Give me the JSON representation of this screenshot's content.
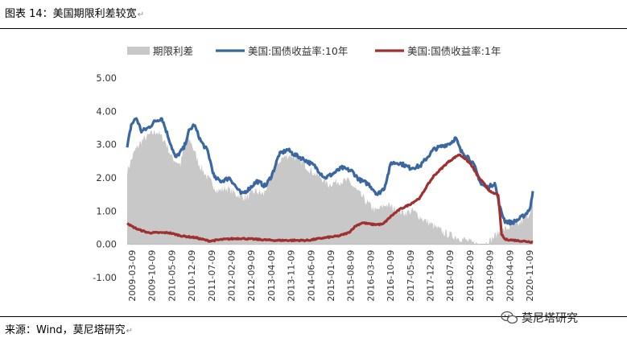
{
  "header": {
    "title": "图表 14：美国期限利差较宽",
    "mark": "↵"
  },
  "footer": {
    "source": "来源：Wind，莫尼塔研究",
    "mark": "↵"
  },
  "watermark": {
    "text": "莫尼塔研究",
    "icon": "wechat-icon"
  },
  "chart_data": {
    "type": "area",
    "title": "",
    "xlabel": "",
    "ylabel": "",
    "ylim": [
      -1.0,
      5.0
    ],
    "yticks": [
      "5.00",
      "4.00",
      "3.00",
      "2.00",
      "1.00",
      "0.00",
      "-1.00"
    ],
    "ytick_values": [
      5,
      4,
      3,
      2,
      1,
      0,
      -1
    ],
    "xticks": [
      "2009-03-09",
      "2009-10-09",
      "2010-05-09",
      "2010-12-09",
      "2011-07-09",
      "2012-02-09",
      "2012-09-09",
      "2013-04-09",
      "2013-11-09",
      "2014-06-09",
      "2015-01-09",
      "2015-08-09",
      "2016-03-09",
      "2016-10-09",
      "2017-05-09",
      "2017-12-09",
      "2018-07-09",
      "2019-02-09",
      "2019-09-09",
      "2020-04-09",
      "2020-11-09"
    ],
    "x_start": 2009.18,
    "x_end": 2021.12,
    "legend": {
      "position": "top"
    },
    "colors": {
      "spread": "#c8c8c8",
      "y10": "#3a67a2",
      "y1": "#a02f2f",
      "axis": "#aaaaaa"
    },
    "series": [
      {
        "name": "期限利差",
        "kind": "area",
        "x": [
          2009.18,
          2009.4,
          2009.6,
          2009.85,
          2010.05,
          2010.3,
          2010.5,
          2010.75,
          2010.9,
          2011.05,
          2011.3,
          2011.55,
          2011.85,
          2012.1,
          2012.4,
          2012.7,
          2012.95,
          2013.2,
          2013.5,
          2013.75,
          2014.0,
          2014.3,
          2014.6,
          2014.9,
          2015.1,
          2015.4,
          2015.7,
          2015.95,
          2016.2,
          2016.5,
          2016.8,
          2017.0,
          2017.3,
          2017.6,
          2017.9,
          2018.2,
          2018.5,
          2018.8,
          2019.1,
          2019.3,
          2019.5,
          2019.8,
          2020.1,
          2020.4,
          2020.7,
          2021.0,
          2021.12
        ],
        "values": [
          2.2,
          2.8,
          3.1,
          3.3,
          3.4,
          3.1,
          2.6,
          2.4,
          3.2,
          3.1,
          2.4,
          2.0,
          1.6,
          1.7,
          1.5,
          1.4,
          1.6,
          1.5,
          2.3,
          2.6,
          2.7,
          2.5,
          2.2,
          2.0,
          1.8,
          1.9,
          1.9,
          1.6,
          1.3,
          1.0,
          1.2,
          1.1,
          0.95,
          1.0,
          0.75,
          0.55,
          0.35,
          0.25,
          0.15,
          0.05,
          0.0,
          0.05,
          0.35,
          0.5,
          0.6,
          0.9,
          1.3
        ]
      },
      {
        "name": "美国:国债收益率:10年",
        "kind": "line",
        "x": [
          2009.18,
          2009.3,
          2009.45,
          2009.6,
          2009.8,
          2010.0,
          2010.2,
          2010.4,
          2010.6,
          2010.85,
          2011.0,
          2011.15,
          2011.35,
          2011.55,
          2011.75,
          2011.95,
          2012.2,
          2012.4,
          2012.55,
          2012.8,
          2013.0,
          2013.25,
          2013.45,
          2013.65,
          2013.9,
          2014.1,
          2014.4,
          2014.7,
          2015.0,
          2015.2,
          2015.5,
          2015.8,
          2016.0,
          2016.3,
          2016.55,
          2016.75,
          2016.95,
          2017.2,
          2017.5,
          2017.8,
          2018.0,
          2018.2,
          2018.45,
          2018.7,
          2018.85,
          2019.0,
          2019.2,
          2019.4,
          2019.6,
          2019.8,
          2020.0,
          2020.15,
          2020.3,
          2020.5,
          2020.7,
          2020.9,
          2021.05,
          2021.12
        ],
        "values": [
          2.9,
          3.6,
          3.8,
          3.4,
          3.5,
          3.7,
          3.8,
          3.2,
          2.6,
          2.9,
          3.4,
          3.6,
          3.1,
          2.8,
          2.0,
          1.9,
          2.0,
          1.7,
          1.5,
          1.7,
          1.9,
          1.75,
          2.1,
          2.7,
          2.85,
          2.7,
          2.55,
          2.35,
          2.0,
          2.1,
          2.3,
          2.2,
          1.95,
          1.8,
          1.5,
          1.7,
          2.45,
          2.45,
          2.3,
          2.35,
          2.6,
          2.85,
          2.95,
          3.05,
          3.2,
          2.8,
          2.65,
          2.35,
          1.8,
          1.7,
          1.85,
          1.1,
          0.7,
          0.65,
          0.75,
          0.9,
          1.1,
          1.6
        ]
      },
      {
        "name": "美国:国债收益率:1年",
        "kind": "line",
        "x": [
          2009.18,
          2009.3,
          2009.5,
          2009.8,
          2010.1,
          2010.4,
          2010.8,
          2011.2,
          2011.6,
          2012.0,
          2012.5,
          2013.0,
          2013.5,
          2014.0,
          2014.5,
          2015.0,
          2015.4,
          2015.7,
          2015.9,
          2016.1,
          2016.4,
          2016.7,
          2016.95,
          2017.2,
          2017.5,
          2017.8,
          2018.0,
          2018.2,
          2018.4,
          2018.6,
          2018.8,
          2018.95,
          2019.1,
          2019.3,
          2019.5,
          2019.7,
          2019.9,
          2020.1,
          2020.2,
          2020.3,
          2020.5,
          2020.8,
          2021.12
        ],
        "values": [
          0.65,
          0.55,
          0.45,
          0.35,
          0.35,
          0.35,
          0.25,
          0.2,
          0.1,
          0.15,
          0.18,
          0.15,
          0.12,
          0.12,
          0.12,
          0.2,
          0.25,
          0.35,
          0.55,
          0.65,
          0.6,
          0.6,
          0.85,
          1.05,
          1.2,
          1.4,
          1.75,
          2.05,
          2.25,
          2.45,
          2.6,
          2.7,
          2.6,
          2.4,
          2.05,
          1.8,
          1.55,
          1.5,
          0.3,
          0.15,
          0.13,
          0.1,
          0.07
        ]
      }
    ]
  }
}
